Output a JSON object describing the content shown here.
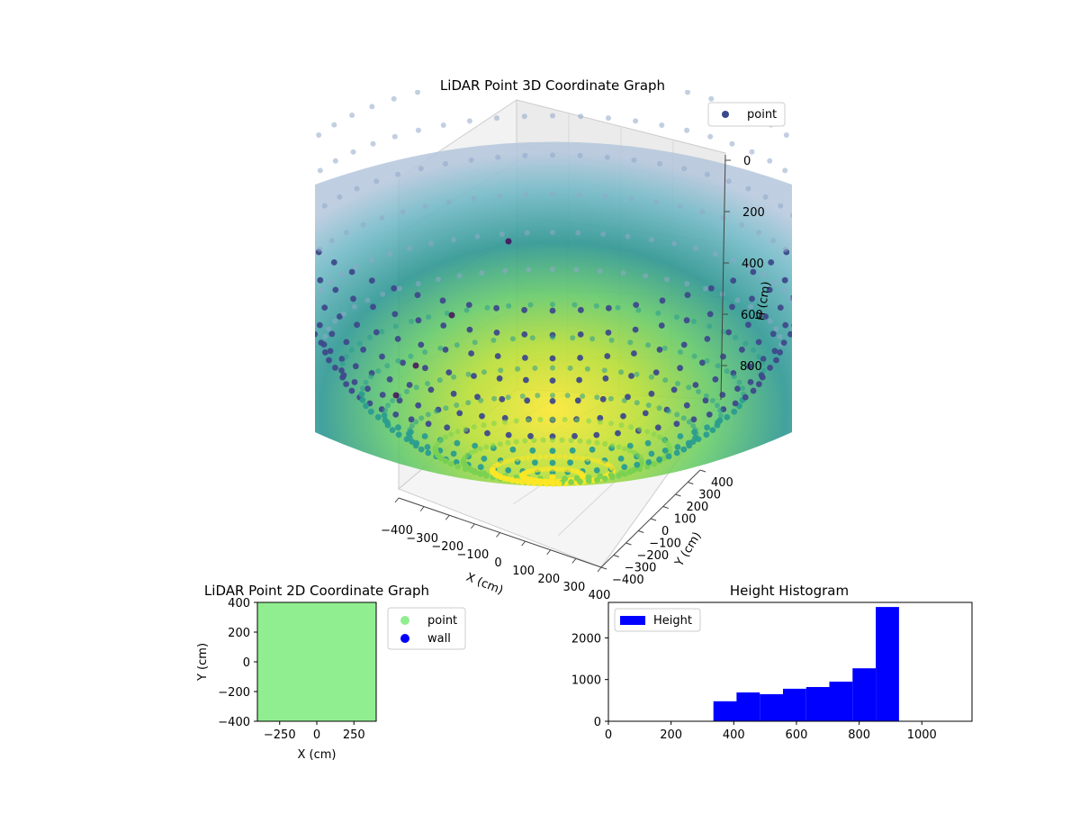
{
  "colors": {
    "point_legend": "#3b4a8c",
    "scatter2d_fill": "#90ee90",
    "wall": "#0000ff",
    "hist_bar": "#0000ff",
    "viridis_low": "#440154",
    "viridis_mid": "#21918c",
    "viridis_high": "#fde725"
  },
  "chart_data": [
    {
      "type": "scatter",
      "projection": "3d",
      "title": "LiDAR Point 3D Coordinate Graph",
      "xlabel": "X (cm)",
      "ylabel": "Y (cm)",
      "zlabel": "H (cm)",
      "xlim": [
        -400,
        400
      ],
      "ylim": [
        -400,
        400
      ],
      "zlim": [
        0,
        1000
      ],
      "z_inverted": true,
      "x_ticks": [
        "−400",
        "−300",
        "−200",
        "−100",
        "0",
        "100",
        "200",
        "300",
        "400"
      ],
      "y_ticks": [
        "−400",
        "−300",
        "−200",
        "−100",
        "0",
        "100",
        "200",
        "300",
        "400"
      ],
      "z_ticks": [
        "0",
        "200",
        "400",
        "600",
        "800"
      ],
      "legend": {
        "entries": [
          "point"
        ],
        "position": "upper-right"
      },
      "colormap": "viridis",
      "shape": "hemispherical bowl of points, radius about 400 cm, lowest point near H = 1000",
      "grid": true
    },
    {
      "type": "scatter",
      "title": "LiDAR Point 2D Coordinate Graph",
      "xlabel": "X (cm)",
      "ylabel": "Y (cm)",
      "xlim": [
        -400,
        400
      ],
      "ylim": [
        -400,
        400
      ],
      "x_ticks": [
        "−250",
        "0",
        "250"
      ],
      "y_ticks": [
        "400",
        "200",
        "0",
        "−200",
        "−400"
      ],
      "legend": {
        "entries": [
          "point",
          "wall"
        ],
        "position": "outside-right"
      },
      "note_fill": "points cover whole area"
    },
    {
      "type": "bar",
      "subtype": "histogram",
      "title": "Height Histogram",
      "xlim": [
        0,
        1160
      ],
      "ylim": [
        0,
        2850
      ],
      "x_ticks": [
        "0",
        "200",
        "400",
        "600",
        "800",
        "1000"
      ],
      "y_ticks": [
        "0",
        "1000",
        "2000"
      ],
      "bins": [
        {
          "start": 335,
          "end": 409,
          "count": 480
        },
        {
          "start": 409,
          "end": 483,
          "count": 690
        },
        {
          "start": 483,
          "end": 557,
          "count": 650
        },
        {
          "start": 557,
          "end": 631,
          "count": 780
        },
        {
          "start": 631,
          "end": 705,
          "count": 820
        },
        {
          "start": 705,
          "end": 779,
          "count": 950
        },
        {
          "start": 779,
          "end": 853,
          "count": 1270
        },
        {
          "start": 853,
          "end": 927,
          "count": 2740
        }
      ],
      "legend": {
        "entries": [
          "Height"
        ],
        "position": "upper-left"
      }
    }
  ]
}
